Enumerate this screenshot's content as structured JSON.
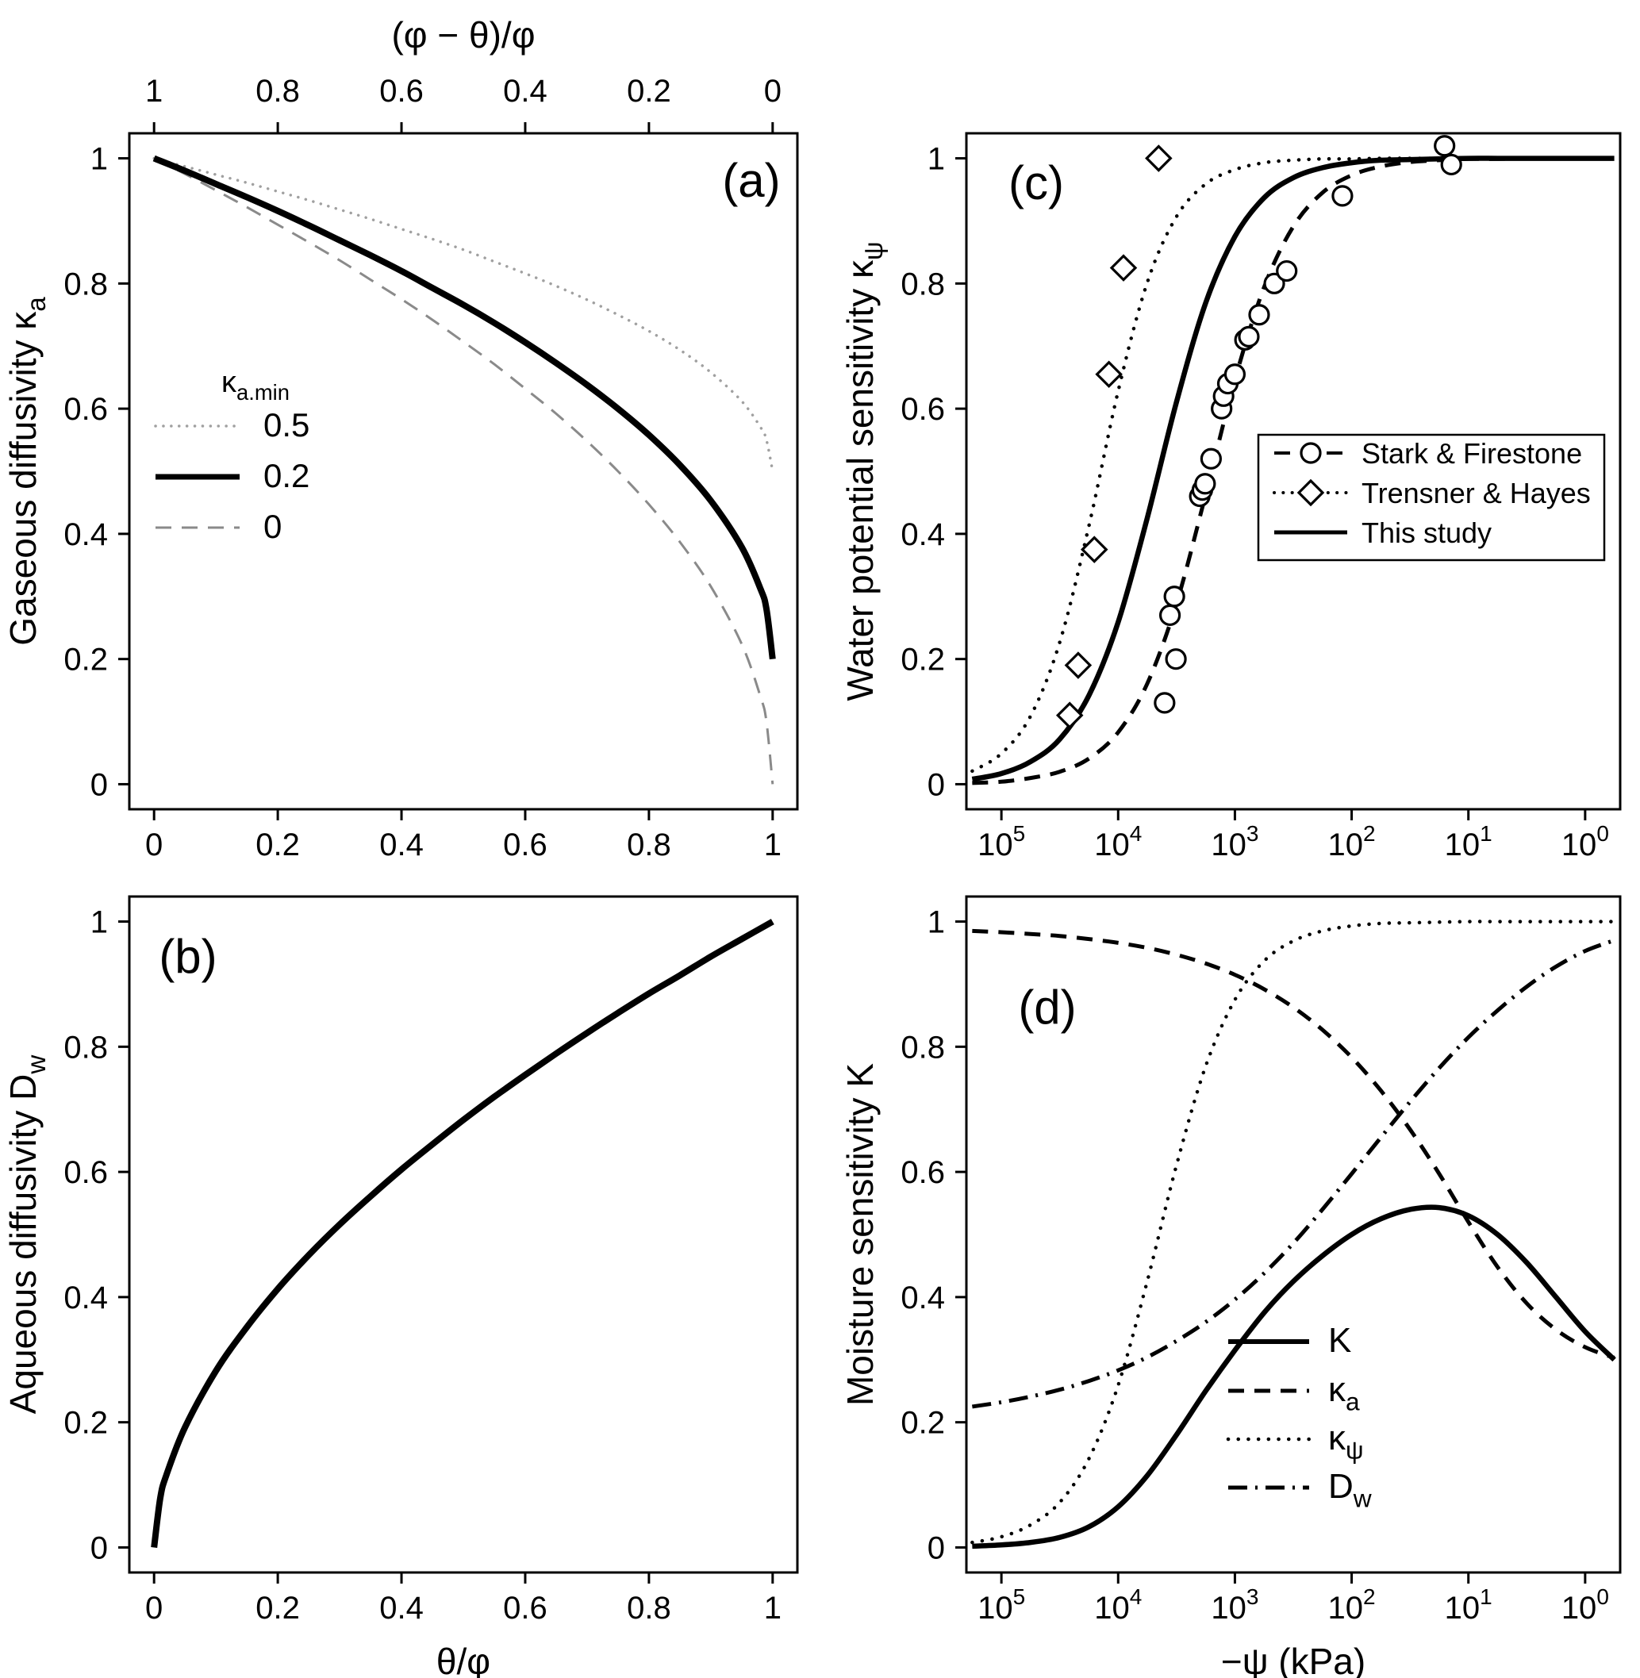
{
  "figure": {
    "background": "#ffffff",
    "text_color": "#000000"
  },
  "chart_data": [
    {
      "id": "a",
      "type": "line",
      "panel_letter": "(a)",
      "x_axis": {
        "scale": "linear",
        "lim": [
          0,
          1
        ],
        "ticks": [
          0,
          0.2,
          0.4,
          0.6,
          0.8,
          1
        ],
        "tick_labels": [
          "0",
          "0.2",
          "0.4",
          "0.6",
          "0.8",
          "1"
        ],
        "label_parts": []
      },
      "top_axis": {
        "label_parts": [
          {
            "t": "(φ − θ)/φ"
          }
        ],
        "tick_labels": [
          "1",
          "0.8",
          "0.6",
          "0.4",
          "0.2",
          "0"
        ]
      },
      "y_axis": {
        "lim": [
          0,
          1
        ],
        "ticks": [
          0,
          0.2,
          0.4,
          0.6,
          0.8,
          1
        ],
        "tick_labels": [
          "0",
          "0.2",
          "0.4",
          "0.6",
          "0.8",
          "1"
        ],
        "label_parts": [
          {
            "t": "Gaseous diffusivity  κ"
          },
          {
            "t": "a",
            "style": "sub"
          }
        ]
      },
      "legend": {
        "title_parts": [
          {
            "t": "κ"
          },
          {
            "t": "a.min",
            "style": "sub"
          }
        ],
        "items": [
          {
            "label_parts": [
              {
                "t": "0.5"
              }
            ],
            "dash": "dotted",
            "color": "#a0a0a0",
            "width": 3.5
          },
          {
            "label_parts": [
              {
                "t": "0.2"
              }
            ],
            "dash": "solid",
            "color": "#000000",
            "width": 7
          },
          {
            "label_parts": [
              {
                "t": "0"
              }
            ],
            "dash": "dashed",
            "color": "#8a8a8a",
            "width": 3
          }
        ]
      },
      "x": [
        0,
        0.05,
        0.1,
        0.15,
        0.2,
        0.25,
        0.3,
        0.35,
        0.4,
        0.45,
        0.5,
        0.55,
        0.6,
        0.65,
        0.7,
        0.75,
        0.8,
        0.85,
        0.9,
        0.95,
        0.98,
        0.99,
        1
      ],
      "series": [
        {
          "name": "kappa-a-min-0.5",
          "dash": "dotted",
          "color": "#a0a0a0",
          "width": 3.5,
          "y": [
            1,
            0.987,
            0.974,
            0.961,
            0.947,
            0.933,
            0.918,
            0.903,
            0.887,
            0.871,
            0.854,
            0.835,
            0.816,
            0.796,
            0.774,
            0.75,
            0.724,
            0.694,
            0.658,
            0.612,
            0.571,
            0.55,
            0.5
          ]
        },
        {
          "name": "kappa-a-min-0",
          "dash": "dashed",
          "color": "#8a8a8a",
          "width": 3,
          "y": [
            1,
            0.975,
            0.949,
            0.922,
            0.894,
            0.866,
            0.837,
            0.806,
            0.775,
            0.742,
            0.707,
            0.671,
            0.632,
            0.592,
            0.548,
            0.5,
            0.447,
            0.387,
            0.316,
            0.224,
            0.141,
            0.1,
            0
          ]
        },
        {
          "name": "kappa-a-min-0.2",
          "dash": "solid",
          "color": "#000000",
          "width": 8,
          "y": [
            1,
            0.98,
            0.959,
            0.938,
            0.916,
            0.893,
            0.869,
            0.845,
            0.82,
            0.793,
            0.766,
            0.737,
            0.706,
            0.673,
            0.638,
            0.6,
            0.558,
            0.51,
            0.453,
            0.379,
            0.313,
            0.28,
            0.2
          ]
        }
      ]
    },
    {
      "id": "b",
      "type": "line",
      "panel_letter": "(b)",
      "x_axis": {
        "scale": "linear",
        "lim": [
          0,
          1
        ],
        "ticks": [
          0,
          0.2,
          0.4,
          0.6,
          0.8,
          1
        ],
        "tick_labels": [
          "0",
          "0.2",
          "0.4",
          "0.6",
          "0.8",
          "1"
        ],
        "label_parts": [
          {
            "t": "θ/φ"
          }
        ]
      },
      "y_axis": {
        "lim": [
          0,
          1
        ],
        "ticks": [
          0,
          0.2,
          0.4,
          0.6,
          0.8,
          1
        ],
        "tick_labels": [
          "0",
          "0.2",
          "0.4",
          "0.6",
          "0.8",
          "1"
        ],
        "label_parts": [
          {
            "t": "Aqueous diffusivity  D"
          },
          {
            "t": "w",
            "style": "sub"
          }
        ]
      },
      "x": [
        0,
        0.01,
        0.02,
        0.05,
        0.1,
        0.15,
        0.2,
        0.25,
        0.3,
        0.35,
        0.4,
        0.45,
        0.5,
        0.55,
        0.6,
        0.65,
        0.7,
        0.75,
        0.8,
        0.85,
        0.9,
        0.95,
        1
      ],
      "series": [
        {
          "name": "aqueous-diffusivity",
          "dash": "solid",
          "color": "#000000",
          "width": 8,
          "y": [
            0,
            0.079,
            0.116,
            0.192,
            0.282,
            0.352,
            0.413,
            0.467,
            0.516,
            0.561,
            0.604,
            0.644,
            0.683,
            0.72,
            0.755,
            0.789,
            0.822,
            0.854,
            0.885,
            0.914,
            0.944,
            0.972,
            1
          ]
        }
      ]
    },
    {
      "id": "c",
      "type": "line-scatter",
      "panel_letter": "(c)",
      "x_axis": {
        "scale": "log10-reversed",
        "lim_log10": [
          5.3,
          -0.3
        ],
        "tick_exponents": [
          5,
          4,
          3,
          2,
          1,
          0
        ],
        "label_parts": []
      },
      "y_axis": {
        "lim": [
          0,
          1
        ],
        "ticks": [
          0,
          0.2,
          0.4,
          0.6,
          0.8,
          1
        ],
        "tick_labels": [
          "0",
          "0.2",
          "0.4",
          "0.6",
          "0.8",
          "1"
        ],
        "label_parts": [
          {
            "t": "Water potential sensitivity  κ"
          },
          {
            "t": "ψ",
            "style": "sub"
          }
        ]
      },
      "legend": {
        "box": true,
        "items": [
          {
            "label_parts": [
              {
                "t": "Stark & Firestone"
              }
            ],
            "dash": "dashed",
            "color": "#000000",
            "width": 4,
            "marker": "circle"
          },
          {
            "label_parts": [
              {
                "t": "Trensner & Hayes"
              }
            ],
            "dash": "dotted",
            "color": "#000000",
            "width": 4,
            "marker": "diamond"
          },
          {
            "label_parts": [
              {
                "t": "This study"
              }
            ],
            "dash": "solid",
            "color": "#000000",
            "width": 5
          }
        ]
      },
      "x_log10": [
        5.25,
        5,
        4.75,
        4.5,
        4.25,
        4,
        3.75,
        3.5,
        3.25,
        3,
        2.75,
        2.5,
        2.25,
        2,
        1.75,
        1.5,
        1.25,
        1,
        0.75,
        0.5,
        0.25,
        0,
        -0.25
      ],
      "curves": [
        {
          "name": "fit-trensner-hayes",
          "dash": "dotted",
          "color": "#000000",
          "width": 4.5,
          "y": [
            0.021,
            0.049,
            0.109,
            0.227,
            0.413,
            0.628,
            0.802,
            0.907,
            0.959,
            0.982,
            0.993,
            0.997,
            0.999,
            0.999,
            1,
            1,
            1,
            1,
            1,
            1,
            1,
            1,
            1
          ]
        },
        {
          "name": "fit-stark-firestone",
          "dash": "dashed",
          "color": "#000000",
          "width": 5,
          "y": [
            0.002,
            0.004,
            0.01,
            0.02,
            0.041,
            0.083,
            0.161,
            0.289,
            0.463,
            0.646,
            0.794,
            0.891,
            0.945,
            0.973,
            0.987,
            0.994,
            0.997,
            0.999,
            0.999,
            1,
            1,
            1,
            1
          ]
        },
        {
          "name": "fit-this-study",
          "dash": "solid",
          "color": "#000000",
          "width": 6.5,
          "y": [
            0.008,
            0.017,
            0.036,
            0.072,
            0.142,
            0.259,
            0.426,
            0.611,
            0.769,
            0.875,
            0.937,
            0.969,
            0.985,
            0.993,
            0.997,
            0.998,
            0.999,
            1,
            1,
            1,
            1,
            1,
            1
          ]
        }
      ],
      "scatter": [
        {
          "name": "obs-stark-firestone",
          "marker": "circle",
          "points_kpa": [
            [
              4000,
              0.13
            ],
            [
              3600,
              0.27
            ],
            [
              3300,
              0.3
            ],
            [
              3200,
              0.2
            ],
            [
              2000,
              0.46
            ],
            [
              1900,
              0.47
            ],
            [
              1800,
              0.48
            ],
            [
              1600,
              0.52
            ],
            [
              1300,
              0.6
            ],
            [
              1250,
              0.62
            ],
            [
              1150,
              0.64
            ],
            [
              1000,
              0.655
            ],
            [
              820,
              0.71
            ],
            [
              760,
              0.715
            ],
            [
              620,
              0.75
            ],
            [
              460,
              0.8
            ],
            [
              360,
              0.82
            ],
            [
              120,
              0.94
            ],
            [
              16,
              1.02
            ],
            [
              14,
              0.99
            ]
          ]
        },
        {
          "name": "obs-trensner-hayes",
          "marker": "diamond",
          "points_kpa": [
            [
              26000,
              0.11
            ],
            [
              22000,
              0.19
            ],
            [
              16000,
              0.375
            ],
            [
              12000,
              0.655
            ],
            [
              9000,
              0.825
            ],
            [
              4500,
              1.0
            ]
          ]
        }
      ]
    },
    {
      "id": "d",
      "type": "line",
      "panel_letter": "(d)",
      "x_axis": {
        "scale": "log10-reversed",
        "lim_log10": [
          5.3,
          -0.3
        ],
        "tick_exponents": [
          5,
          4,
          3,
          2,
          1,
          0
        ],
        "label_parts": [
          {
            "t": "−ψ (kPa)"
          }
        ]
      },
      "y_axis": {
        "lim": [
          0,
          1
        ],
        "ticks": [
          0,
          0.2,
          0.4,
          0.6,
          0.8,
          1
        ],
        "tick_labels": [
          "0",
          "0.2",
          "0.4",
          "0.6",
          "0.8",
          "1"
        ],
        "label_parts": [
          {
            "t": "Moisture sensitivity  K"
          }
        ]
      },
      "legend": {
        "box": false,
        "items": [
          {
            "label_parts": [
              {
                "t": "K"
              }
            ],
            "dash": "solid",
            "color": "#000000",
            "width": 6
          },
          {
            "label_parts": [
              {
                "t": "κ"
              },
              {
                "t": "a",
                "style": "sub"
              }
            ],
            "dash": "dashed",
            "color": "#000000",
            "width": 5
          },
          {
            "label_parts": [
              {
                "t": "κ"
              },
              {
                "t": "ψ",
                "style": "sub"
              }
            ],
            "dash": "dotted",
            "color": "#000000",
            "width": 4.5
          },
          {
            "label_parts": [
              {
                "t": "D"
              },
              {
                "t": "w",
                "style": "sub"
              }
            ],
            "dash": "dashdot",
            "color": "#000000",
            "width": 5
          }
        ]
      },
      "x_log10": [
        5.25,
        5,
        4.75,
        4.5,
        4.25,
        4,
        3.75,
        3.5,
        3.25,
        3,
        2.75,
        2.5,
        2.25,
        2,
        1.75,
        1.5,
        1.25,
        1,
        0.75,
        0.5,
        0.25,
        0,
        -0.25
      ],
      "curves": [
        {
          "name": "kappa-psi",
          "dash": "dotted",
          "color": "#000000",
          "width": 4.5,
          "y": [
            0.008,
            0.017,
            0.036,
            0.072,
            0.142,
            0.259,
            0.426,
            0.611,
            0.769,
            0.875,
            0.937,
            0.969,
            0.985,
            0.993,
            0.997,
            0.998,
            0.999,
            1,
            1,
            1,
            1,
            1,
            1
          ]
        },
        {
          "name": "d-w",
          "dash": "dashdot",
          "color": "#000000",
          "width": 5,
          "y": [
            0.225,
            0.232,
            0.241,
            0.252,
            0.266,
            0.283,
            0.304,
            0.33,
            0.36,
            0.396,
            0.438,
            0.486,
            0.54,
            0.597,
            0.655,
            0.712,
            0.766,
            0.815,
            0.858,
            0.896,
            0.928,
            0.953,
            0.97
          ]
        },
        {
          "name": "kappa-a",
          "dash": "dashed",
          "color": "#000000",
          "width": 5,
          "y": [
            0.985,
            0.983,
            0.98,
            0.977,
            0.972,
            0.966,
            0.958,
            0.947,
            0.933,
            0.915,
            0.892,
            0.863,
            0.827,
            0.783,
            0.73,
            0.668,
            0.597,
            0.52,
            0.448,
            0.39,
            0.348,
            0.32,
            0.303
          ]
        },
        {
          "name": "moisture-sensitivity-k",
          "dash": "solid",
          "color": "#000000",
          "width": 6.5,
          "y": [
            0.002,
            0.004,
            0.008,
            0.016,
            0.033,
            0.065,
            0.115,
            0.18,
            0.25,
            0.315,
            0.375,
            0.425,
            0.466,
            0.5,
            0.525,
            0.54,
            0.543,
            0.53,
            0.5,
            0.455,
            0.4,
            0.345,
            0.3
          ]
        }
      ]
    }
  ]
}
